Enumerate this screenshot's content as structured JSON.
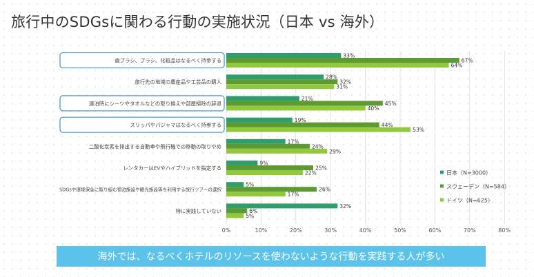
{
  "title": "旅行中のSDGsに関わる行動の実施状況（日本 vs 海外）",
  "footer": "海外では、なるべくホテルのリソースを使わないような行動を実践する人が多い",
  "colors": {
    "japan": "#2f9e6c",
    "sweden": "#5d9a32",
    "germany": "#92c83e",
    "highlight": "#4a9cd0",
    "footer": "#5bc2ea"
  },
  "chart_data": {
    "type": "bar",
    "orientation": "horizontal",
    "categories": [
      "歯ブラシ、ブラシ、化粧品はなるべく持参する",
      "旅行先の地域の農産品や工芸品の購入",
      "連泊時にシーツやタオルなどの取り換えや部屋掃除の辞退",
      "スリッパやパジャマはなるべく持参する",
      "二酸化炭素を排出する自動車や飛行機での移動の取りやめ",
      "レンタカーはEVやハイブリッドを指定する",
      "SDGsや環境保全に取り組む宿泊施設や観光施設等を利用する旅行ツアーの選択",
      "特に実践していない"
    ],
    "highlighted": [
      true,
      false,
      true,
      true,
      false,
      false,
      false,
      false
    ],
    "series": [
      {
        "name": "日本（N=3000）",
        "color": "#2f9e6c",
        "values": [
          33,
          28,
          21,
          19,
          17,
          9,
          5,
          32
        ]
      },
      {
        "name": "スウェーデン（N=584）",
        "color": "#5d9a32",
        "values": [
          67,
          32,
          45,
          44,
          24,
          25,
          26,
          6
        ]
      },
      {
        "name": "ドイツ（N=625）",
        "color": "#92c83e",
        "values": [
          64,
          31,
          40,
          53,
          29,
          22,
          17,
          5
        ]
      }
    ],
    "xlim": [
      0,
      80
    ],
    "xticks": [
      "0%",
      "10%",
      "20%",
      "30%",
      "40%",
      "50%",
      "60%",
      "70%",
      "80%"
    ],
    "value_suffix": "%",
    "legend_position": "right"
  }
}
